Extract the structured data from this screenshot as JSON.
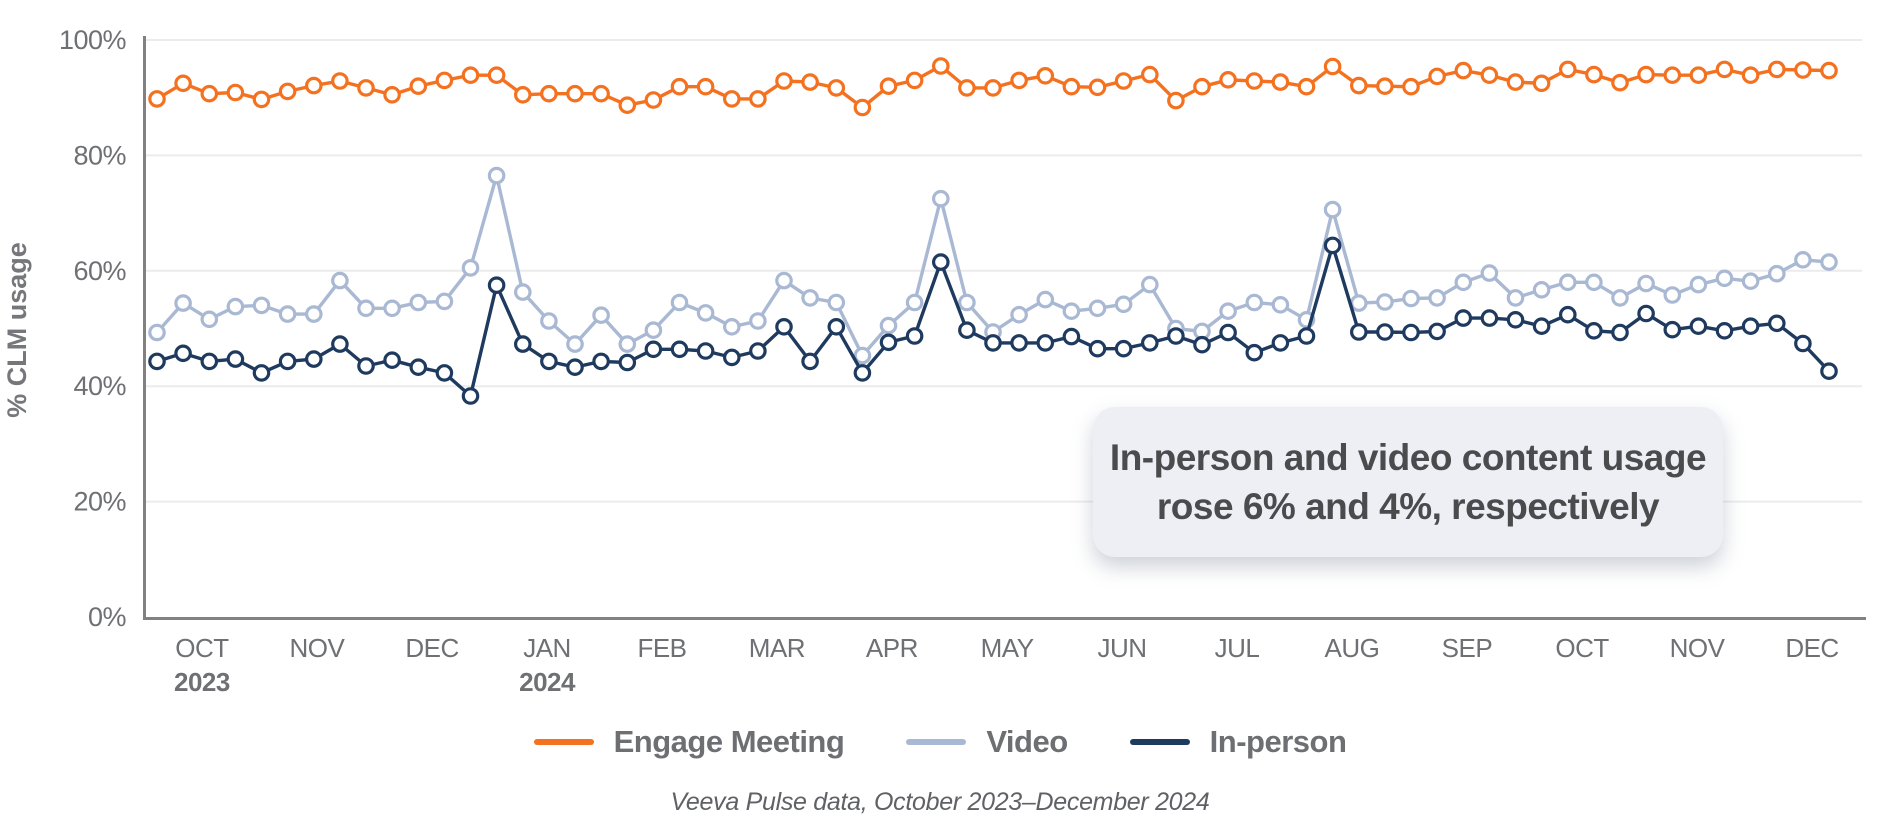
{
  "annotation": {
    "line1": "In-person and video content usage",
    "line2": "rose 6% and 4%, respectively"
  },
  "caption": "Veeva Pulse data, October 2023–December 2024",
  "chart_data": {
    "type": "line",
    "title": "",
    "xlabel": "",
    "ylabel": "% CLM usage",
    "ylim": [
      0,
      100
    ],
    "yticks": [
      0,
      20,
      40,
      60,
      80,
      100
    ],
    "ytick_suffix": "%",
    "grid": true,
    "legend_position": "bottom",
    "x_unit": "weekly data points, Oct 2023 through Dec 2024",
    "months": [
      {
        "label": "OCT",
        "year": "2023",
        "pos": 1.72
      },
      {
        "label": "NOV",
        "pos": 6.12
      },
      {
        "label": "DEC",
        "pos": 10.53
      },
      {
        "label": "JAN",
        "year": "2024",
        "pos": 14.93
      },
      {
        "label": "FEB",
        "pos": 19.33
      },
      {
        "label": "MAR",
        "pos": 23.73
      },
      {
        "label": "APR",
        "pos": 28.13
      },
      {
        "label": "MAY",
        "pos": 32.54
      },
      {
        "label": "JUN",
        "pos": 36.94
      },
      {
        "label": "JUL",
        "pos": 41.34
      },
      {
        "label": "AUG",
        "pos": 45.74
      },
      {
        "label": "SEP",
        "pos": 50.14
      },
      {
        "label": "OCT",
        "pos": 54.55
      },
      {
        "label": "NOV",
        "pos": 58.95
      },
      {
        "label": "DEC",
        "pos": 63.35
      }
    ],
    "series": [
      {
        "name": "Engage Meeting",
        "color": "#F4711F",
        "zorder": 3,
        "values": [
          89.8,
          92.5,
          90.7,
          90.9,
          89.7,
          91.1,
          92.1,
          92.9,
          91.7,
          90.5,
          92,
          93,
          93.9,
          93.9,
          90.5,
          90.7,
          90.7,
          90.7,
          88.7,
          89.6,
          91.9,
          91.9,
          89.8,
          89.8,
          92.9,
          92.7,
          91.7,
          88.3,
          92,
          93,
          95.5,
          91.7,
          91.7,
          93,
          93.8,
          91.9,
          91.8,
          92.9,
          94,
          89.5,
          91.9,
          93.1,
          92.9,
          92.7,
          91.9,
          95.4,
          92.1,
          92,
          91.9,
          93.7,
          94.7,
          93.9,
          92.7,
          92.5,
          94.9,
          94,
          92.6,
          94,
          93.9,
          93.9,
          94.9,
          93.9,
          94.9,
          94.8,
          94.7
        ]
      },
      {
        "name": "Video",
        "color": "#A9B8D3",
        "zorder": 1,
        "values": [
          49.3,
          54.4,
          51.6,
          53.8,
          54,
          52.5,
          52.5,
          58.3,
          53.5,
          53.5,
          54.5,
          54.7,
          60.5,
          76.5,
          56.3,
          51.3,
          47.3,
          52.3,
          47.3,
          49.7,
          54.5,
          52.7,
          50.3,
          51.3,
          58.3,
          55.3,
          54.5,
          45.3,
          50.5,
          54.5,
          72.5,
          54.5,
          49.4,
          52.4,
          55,
          53,
          53.5,
          54.2,
          57.6,
          50,
          49.5,
          53,
          54.5,
          54.1,
          51.5,
          70.6,
          54.4,
          54.6,
          55.2,
          55.3,
          58,
          59.6,
          55.3,
          56.7,
          58,
          58,
          55.3,
          57.8,
          55.8,
          57.6,
          58.7,
          58.2,
          59.5,
          61.9,
          61.5
        ]
      },
      {
        "name": "In-person",
        "color": "#1F3A5F",
        "zorder": 2,
        "values": [
          44.3,
          45.7,
          44.3,
          44.7,
          42.3,
          44.3,
          44.7,
          47.3,
          43.5,
          44.5,
          43.3,
          42.3,
          38.3,
          57.5,
          47.3,
          44.3,
          43.3,
          44.3,
          44.1,
          46.4,
          46.4,
          46.1,
          45,
          46.1,
          50.3,
          44.3,
          50.3,
          42.3,
          47.6,
          48.7,
          61.5,
          49.7,
          47.5,
          47.5,
          47.5,
          48.6,
          46.5,
          46.5,
          47.5,
          48.7,
          47.2,
          49.3,
          45.8,
          47.5,
          48.7,
          64.4,
          49.4,
          49.4,
          49.3,
          49.5,
          51.8,
          51.8,
          51.5,
          50.4,
          52.4,
          49.6,
          49.3,
          52.6,
          49.8,
          50.4,
          49.6,
          50.4,
          50.9,
          47.4,
          42.6
        ]
      }
    ]
  },
  "legend": {
    "items": [
      {
        "label": "Engage Meeting"
      },
      {
        "label": "Video"
      },
      {
        "label": "In-person"
      }
    ]
  },
  "colors": {
    "grid": "#ececec",
    "axis": "#818181",
    "tick_text": "#6f7073",
    "axis_title": "#76777b"
  }
}
